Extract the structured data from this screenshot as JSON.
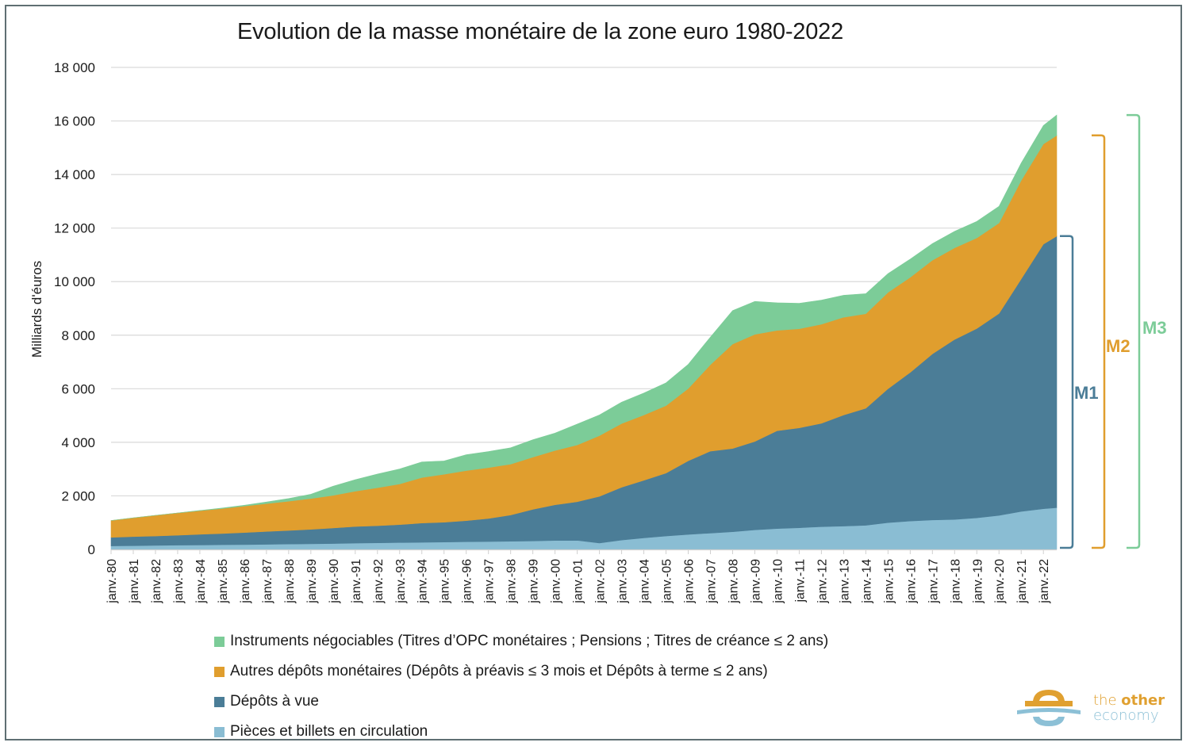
{
  "chart_data": {
    "type": "area",
    "stacked": true,
    "title": "Evolution de la masse monétaire de la zone euro 1980-2022",
    "xlabel": "",
    "ylabel": "Milliards d'éuros",
    "ylim": [
      0,
      18000
    ],
    "yticks": [
      0,
      2000,
      4000,
      6000,
      8000,
      10000,
      12000,
      14000,
      16000,
      18000
    ],
    "ytick_labels": [
      "0",
      "2 000",
      "4 000",
      "6 000",
      "8 000",
      "10 000",
      "12 000",
      "14 000",
      "16 000",
      "18 000"
    ],
    "grid": true,
    "legend_position": "bottom",
    "x_tick_labels": [
      "janv.-80",
      "janv.-81",
      "janv.-82",
      "janv.-83",
      "janv.-84",
      "janv.-85",
      "janv.-86",
      "janv.-87",
      "janv.-88",
      "janv.-89",
      "janv.-90",
      "janv.-91",
      "janv.-92",
      "janv.-93",
      "janv.-94",
      "janv.-95",
      "janv.-96",
      "janv.-97",
      "janv.-98",
      "janv.-99",
      "janv.-00",
      "janv.-01",
      "janv.-02",
      "janv.-03",
      "janv.-04",
      "janv.-05",
      "janv.-06",
      "janv.-07",
      "janv.-08",
      "janv.-09",
      "janv.-10",
      "janv.-11",
      "janv.-12",
      "janv.-13",
      "janv.-14",
      "janv.-15",
      "janv.-16",
      "janv.-17",
      "janv.-18",
      "janv.-19",
      "janv.-20",
      "janv.-21",
      "janv.-22"
    ],
    "x": [
      1980,
      1981,
      1982,
      1983,
      1984,
      1985,
      1986,
      1987,
      1988,
      1989,
      1990,
      1991,
      1992,
      1993,
      1994,
      1995,
      1996,
      1997,
      1998,
      1999,
      2000,
      2001,
      2002,
      2003,
      2004,
      2005,
      2006,
      2007,
      2008,
      2009,
      2010,
      2011,
      2012,
      2013,
      2014,
      2015,
      2016,
      2017,
      2018,
      2019,
      2020,
      2021,
      2022,
      2022.6
    ],
    "x_range": [
      1980,
      2022.6
    ],
    "series": [
      {
        "name": "Pièces et billets en circulation",
        "color": "#8abdd3",
        "values": [
          130,
          140,
          150,
          160,
          165,
          175,
          180,
          190,
          200,
          210,
          220,
          235,
          245,
          255,
          265,
          275,
          285,
          295,
          305,
          315,
          335,
          340,
          240,
          350,
          430,
          500,
          560,
          610,
          660,
          730,
          780,
          810,
          850,
          870,
          900,
          1000,
          1060,
          1100,
          1120,
          1180,
          1270,
          1420,
          1520,
          1560
        ]
      },
      {
        "name": "Dépôts à vue",
        "color": "#4b7d97",
        "values": [
          320,
          340,
          350,
          370,
          400,
          420,
          450,
          480,
          510,
          540,
          580,
          620,
          640,
          670,
          720,
          740,
          790,
          860,
          980,
          1180,
          1330,
          1440,
          1740,
          1970,
          2150,
          2350,
          2750,
          3060,
          3110,
          3300,
          3650,
          3730,
          3860,
          4150,
          4370,
          5000,
          5550,
          6200,
          6720,
          7070,
          7540,
          8680,
          9880,
          10140
        ]
      },
      {
        "name": "Autres dépôts monétaires (Dépôts à préavis ≤ 3 mois et Dépôts à terme ≤ 2 ans)",
        "color": "#e09e2e",
        "values": [
          630,
          700,
          770,
          830,
          880,
          930,
          990,
          1040,
          1090,
          1150,
          1220,
          1320,
          1420,
          1520,
          1700,
          1790,
          1870,
          1900,
          1900,
          1950,
          2030,
          2120,
          2270,
          2380,
          2440,
          2520,
          2700,
          3230,
          3900,
          4000,
          3750,
          3700,
          3700,
          3650,
          3530,
          3600,
          3550,
          3500,
          3420,
          3380,
          3380,
          3680,
          3740,
          3760
        ]
      },
      {
        "name": "Instruments négociables (Titres d’OPC monétaires ; Pensions ; Titres de créance ≤ 2 ans)",
        "color": "#7ccc98",
        "values": [
          0,
          0,
          0,
          0,
          10,
          20,
          30,
          60,
          100,
          160,
          340,
          430,
          510,
          560,
          580,
          500,
          590,
          600,
          610,
          650,
          650,
          780,
          770,
          800,
          820,
          850,
          900,
          1030,
          1250,
          1230,
          1030,
          950,
          900,
          820,
          750,
          700,
          680,
          620,
          620,
          620,
          620,
          650,
          690,
          760
        ]
      }
    ],
    "annotations": [
      {
        "label": "M1",
        "color": "#4b7d97",
        "range": [
          0,
          11700
        ]
      },
      {
        "label": "M2",
        "color": "#e09e2e",
        "range": [
          0,
          15460
        ]
      },
      {
        "label": "M3",
        "color": "#7ccc98",
        "range": [
          0,
          16220
        ]
      }
    ]
  },
  "legend": [
    {
      "label": "Instruments négociables (Titres d’OPC monétaires ; Pensions ; Titres de créance ≤ 2 ans)",
      "color": "#7ccc98"
    },
    {
      "label": "Autres dépôts monétaires (Dépôts à préavis ≤ 3 mois et Dépôts à terme ≤ 2 ans)",
      "color": "#e09e2e"
    },
    {
      "label": "Dépôts à vue",
      "color": "#4b7d97"
    },
    {
      "label": "Pièces et billets en circulation",
      "color": "#8abdd3"
    }
  ],
  "logo": {
    "line1_a": "the ",
    "line1_b": "other",
    "line2": "economy",
    "colors": {
      "orange": "#e0a030",
      "blue": "#8cc0d6"
    }
  }
}
